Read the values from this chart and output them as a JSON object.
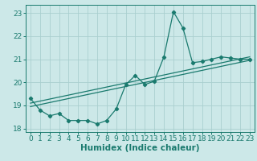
{
  "title": "",
  "xlabel": "Humidex (Indice chaleur)",
  "bg_color": "#cce8e8",
  "grid_color": "#aacfcf",
  "line_color": "#1a7a6e",
  "xlim": [
    -0.5,
    23.5
  ],
  "ylim": [
    17.85,
    23.35
  ],
  "yticks": [
    18,
    19,
    20,
    21,
    22,
    23
  ],
  "xticks": [
    0,
    1,
    2,
    3,
    4,
    5,
    6,
    7,
    8,
    9,
    10,
    11,
    12,
    13,
    14,
    15,
    16,
    17,
    18,
    19,
    20,
    21,
    22,
    23
  ],
  "line1_x": [
    0,
    1,
    2,
    3,
    4,
    5,
    6,
    7,
    8,
    9,
    10,
    11,
    12,
    13,
    14,
    15,
    16,
    17,
    18,
    19,
    20,
    21,
    22,
    23
  ],
  "line1_y": [
    19.3,
    18.8,
    18.55,
    18.65,
    18.35,
    18.35,
    18.35,
    18.2,
    18.35,
    18.85,
    19.9,
    20.3,
    19.9,
    20.05,
    21.1,
    23.05,
    22.35,
    20.85,
    20.9,
    21.0,
    21.1,
    21.05,
    21.0,
    21.0
  ],
  "line2_x": [
    0,
    23
  ],
  "line2_y": [
    19.1,
    21.1
  ],
  "line3_x": [
    0,
    23
  ],
  "line3_y": [
    18.95,
    20.95
  ],
  "tick_fontsize": 6.5,
  "label_fontsize": 7.5
}
